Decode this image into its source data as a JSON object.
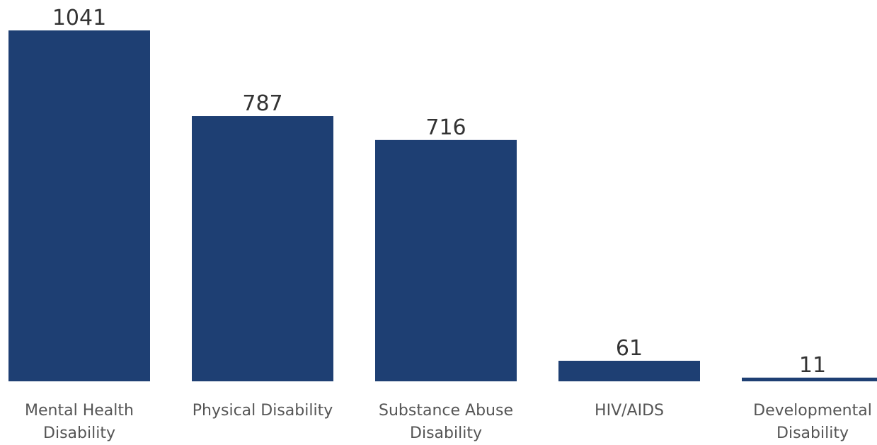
{
  "chart_data": {
    "type": "bar",
    "title": "",
    "xlabel": "",
    "ylabel": "",
    "categories": [
      [
        "Mental Health",
        "Disability"
      ],
      [
        "Physical Disability"
      ],
      [
        "Substance Abuse",
        "Disability"
      ],
      [
        "HIV/AIDS"
      ],
      [
        "Developmental",
        "Disability"
      ]
    ],
    "values": [
      1041,
      787,
      716,
      61,
      11
    ],
    "ylim": [
      0,
      1041
    ],
    "grid": false,
    "legend": "none",
    "bar_color": "#1e3f73",
    "data_labels": true
  }
}
